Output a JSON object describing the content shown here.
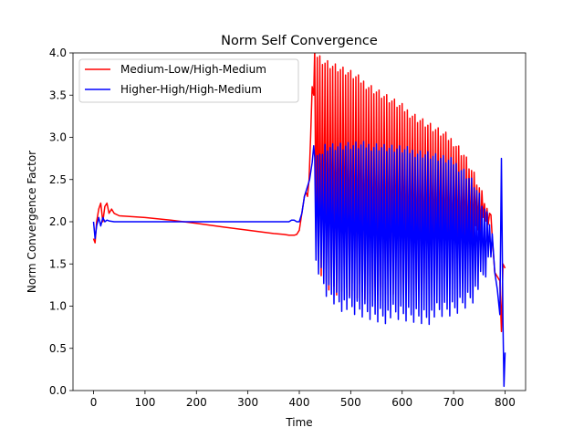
{
  "chart_data": {
    "type": "line",
    "title": "Norm Self Convergence",
    "xlabel": "Time",
    "ylabel": "Norm Convergence Factor",
    "xlim": [
      -40,
      840
    ],
    "ylim": [
      0.0,
      4.0
    ],
    "xticks": [
      0,
      100,
      200,
      300,
      400,
      500,
      600,
      700,
      800
    ],
    "yticks": [
      0.0,
      0.5,
      1.0,
      1.5,
      2.0,
      2.5,
      3.0,
      3.5,
      4.0
    ],
    "xtick_labels": [
      "0",
      "100",
      "200",
      "300",
      "400",
      "500",
      "600",
      "700",
      "800"
    ],
    "ytick_labels": [
      "0.0",
      "0.5",
      "1.0",
      "1.5",
      "2.0",
      "2.5",
      "3.0",
      "3.5",
      "4.0"
    ],
    "grid": false,
    "legend_position": "top-left",
    "series": [
      {
        "name": "Medium-Low/High-Medium",
        "color": "#ff0000",
        "x": [
          0,
          3,
          6,
          10,
          14,
          18,
          22,
          26,
          30,
          35,
          40,
          50,
          100,
          150,
          200,
          250,
          300,
          350,
          370,
          380,
          390,
          395,
          400,
          405,
          410,
          413,
          416,
          419,
          422,
          425,
          428,
          431,
          434,
          437,
          440,
          445,
          460,
          480,
          500,
          520,
          540,
          560,
          580,
          600,
          620,
          640,
          660,
          680,
          700,
          720,
          740,
          760,
          770,
          775,
          780,
          785,
          790,
          793,
          796,
          800
        ],
        "y": [
          1.8,
          1.75,
          2.0,
          2.15,
          2.22,
          2.0,
          2.18,
          2.22,
          2.1,
          2.15,
          2.1,
          2.07,
          2.05,
          2.02,
          1.98,
          1.94,
          1.9,
          1.86,
          1.85,
          1.84,
          1.84,
          1.85,
          1.9,
          2.1,
          2.3,
          2.35,
          2.3,
          2.5,
          3.0,
          3.6,
          3.5,
          2.9,
          3.7,
          4.0,
          3.8,
          3.7,
          3.55,
          3.45,
          3.35,
          3.25,
          3.15,
          3.05,
          2.95,
          2.85,
          2.75,
          2.6,
          2.5,
          2.35,
          2.2,
          2.1,
          2.0,
          1.9,
          1.6,
          1.5,
          1.4,
          1.35,
          1.3,
          0.7,
          1.5,
          1.45
        ],
        "envelope": {
          "x": [
            430,
            450,
            500,
            550,
            600,
            650,
            700,
            720,
            740,
            760,
            770,
            775
          ],
          "upper": [
            4.05,
            3.95,
            3.8,
            3.6,
            3.4,
            3.2,
            3.0,
            2.85,
            2.6,
            2.3,
            2.1,
            1.9
          ],
          "lower": [
            1.55,
            1.2,
            1.05,
            1.05,
            1.1,
            1.2,
            1.35,
            1.5,
            1.7,
            1.85,
            1.95,
            1.8
          ]
        }
      },
      {
        "name": "Higher-High/High-Medium",
        "color": "#0000ff",
        "x": [
          0,
          3,
          6,
          10,
          14,
          18,
          22,
          26,
          30,
          40,
          60,
          100,
          200,
          300,
          380,
          385,
          390,
          395,
          400,
          405,
          410,
          415,
          420,
          425,
          428,
          431,
          435,
          440,
          450,
          500,
          550,
          600,
          650,
          700,
          720,
          740,
          760,
          770,
          775,
          780,
          785,
          790,
          793,
          796,
          798,
          800
        ],
        "y": [
          2.0,
          1.8,
          1.95,
          2.05,
          1.95,
          2.05,
          2.0,
          2.02,
          2.01,
          2.0,
          2.0,
          2.0,
          2.0,
          2.0,
          2.0,
          2.02,
          2.02,
          2.0,
          2.0,
          2.1,
          2.3,
          2.4,
          2.5,
          2.7,
          2.9,
          2.6,
          2.4,
          2.3,
          2.2,
          2.1,
          2.0,
          1.95,
          1.9,
          1.85,
          1.8,
          1.7,
          1.55,
          1.5,
          1.45,
          1.4,
          1.2,
          0.9,
          2.75,
          0.8,
          0.05,
          0.45
        ],
        "envelope": {
          "x": [
            430,
            440,
            450,
            500,
            550,
            600,
            650,
            700,
            720,
            740,
            760,
            770,
            775
          ],
          "upper": [
            2.85,
            2.8,
            2.95,
            2.95,
            2.95,
            2.9,
            2.85,
            2.75,
            2.65,
            2.5,
            2.2,
            2.05,
            1.9
          ],
          "lower": [
            1.45,
            1.3,
            1.1,
            0.85,
            0.8,
            0.78,
            0.78,
            0.85,
            0.95,
            1.05,
            1.25,
            1.4,
            1.5
          ]
        }
      }
    ]
  }
}
